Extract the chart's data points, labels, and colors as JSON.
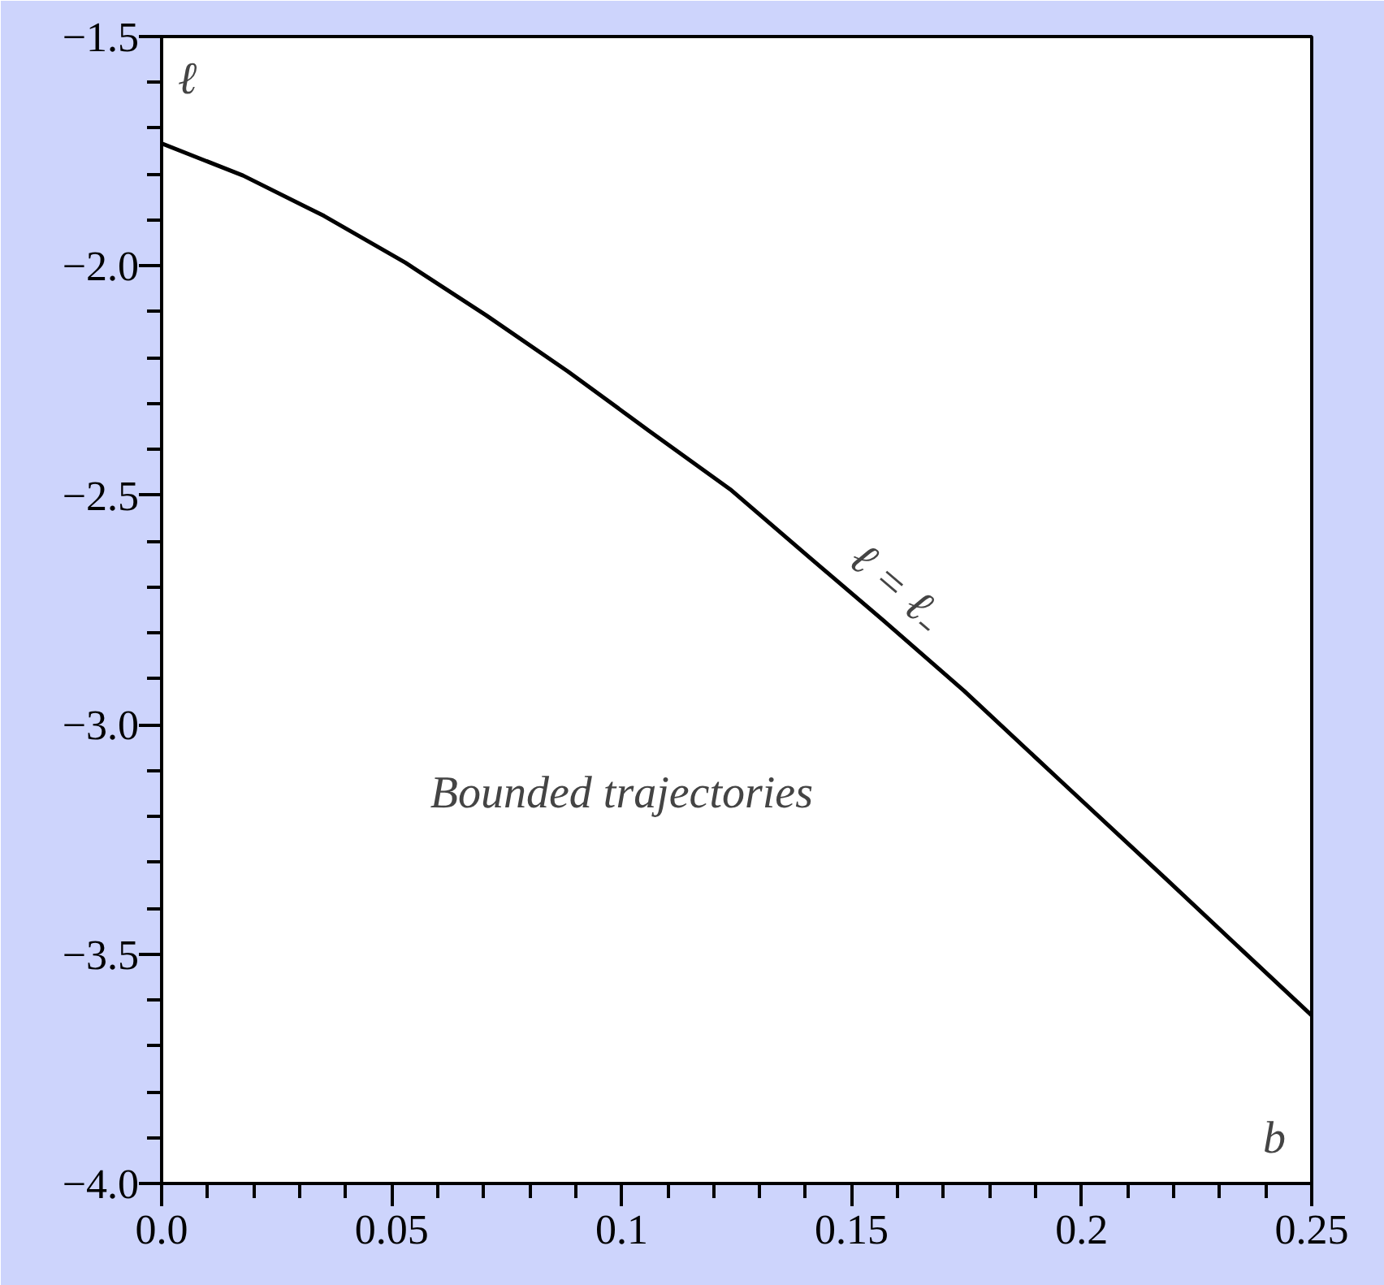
{
  "chart_data": {
    "type": "line",
    "xlabel": "b",
    "ylabel": "ℓ",
    "x": [
      0,
      0.0177,
      0.0353,
      0.053,
      0.0706,
      0.0883,
      0.1059,
      0.1236,
      0.1409,
      0.1575,
      0.1744,
      0.196,
      0.2182,
      0.25
    ],
    "series": [
      {
        "color": "#000000",
        "values": [
          -1.733,
          -1.803,
          -1.891,
          -1.993,
          -2.108,
          -2.23,
          -2.359,
          -2.487,
          -2.636,
          -2.778,
          -2.926,
          -3.128,
          -3.335,
          -3.634
        ]
      }
    ],
    "annotations": [
      "ℓ = ℓ₋",
      "Bounded trajectories"
    ],
    "xlim": [
      0,
      0.25
    ],
    "ylim": [
      -4.0,
      -1.5
    ],
    "xticks": [
      {
        "value": 0,
        "label": "0.0"
      },
      {
        "value": 0.01,
        "label": null
      },
      {
        "value": 0.02,
        "label": null
      },
      {
        "value": 0.03,
        "label": null
      },
      {
        "value": 0.04,
        "label": null
      },
      0.05,
      {
        "value": 0.06,
        "label": null
      },
      {
        "value": 0.07,
        "label": null
      },
      {
        "value": 0.08,
        "label": null
      },
      {
        "value": 0.09,
        "label": null
      },
      0.1,
      {
        "value": 0.11,
        "label": null
      },
      {
        "value": 0.12,
        "label": null
      },
      {
        "value": 0.13,
        "label": null
      },
      {
        "value": 0.14,
        "label": null
      },
      0.15,
      {
        "value": 0.16,
        "label": null
      },
      {
        "value": 0.17,
        "label": null
      },
      {
        "value": 0.18,
        "label": null
      },
      {
        "value": 0.19,
        "label": null
      },
      0.2,
      {
        "value": 0.21,
        "label": null
      },
      {
        "value": 0.22,
        "label": null
      },
      {
        "value": 0.23,
        "label": null
      },
      {
        "value": 0.24,
        "label": null
      },
      0.25
    ],
    "yticks": [
      {
        "value": -1.5,
        "label": "−1.5"
      },
      {
        "value": -1.6,
        "label": null
      },
      {
        "value": -1.7,
        "label": null
      },
      {
        "value": -1.8,
        "label": null
      },
      {
        "value": -1.9,
        "label": null
      },
      {
        "value": -2.0,
        "label": "−2.0"
      },
      {
        "value": -2.1,
        "label": null
      },
      {
        "value": -2.2,
        "label": null
      },
      {
        "value": -2.3,
        "label": null
      },
      {
        "value": -2.4,
        "label": null
      },
      {
        "value": -2.5,
        "label": "−2.5"
      },
      {
        "value": -2.6,
        "label": null
      },
      {
        "value": -2.7,
        "label": null
      },
      {
        "value": -2.8,
        "label": null
      },
      {
        "value": -2.9,
        "label": null
      },
      {
        "value": -3.0,
        "label": "−3.0"
      },
      {
        "value": -3.1,
        "label": null
      },
      {
        "value": -3.2,
        "label": null
      },
      {
        "value": -3.3,
        "label": null
      },
      {
        "value": -3.4,
        "label": null
      },
      {
        "value": -3.5,
        "label": "−3.5"
      },
      {
        "value": -3.6,
        "label": null
      },
      {
        "value": -3.7,
        "label": null
      },
      {
        "value": -3.8,
        "label": null
      },
      {
        "value": -3.9,
        "label": null
      },
      {
        "value": -4.0,
        "label": "−4.0"
      }
    ],
    "grid": false,
    "marker": "none",
    "line_style": "solid"
  }
}
